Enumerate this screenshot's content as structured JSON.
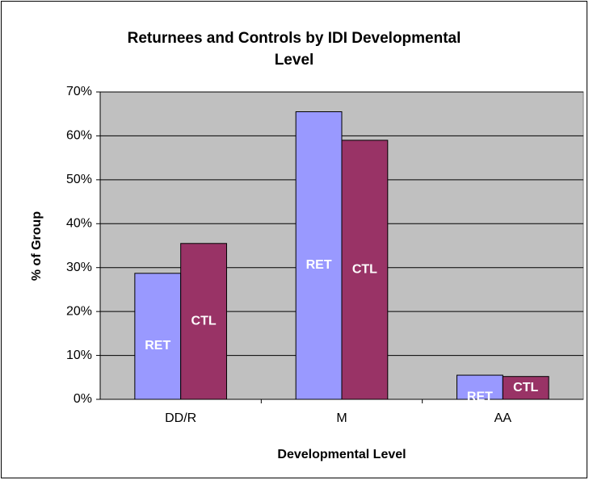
{
  "chart_data": {
    "type": "bar",
    "title": "Returnees and Controls by IDI Developmental Level",
    "x_label": "Developmental Level",
    "y_label": "% of Group",
    "categories": [
      "DD/R",
      "M",
      "AA"
    ],
    "series": [
      {
        "name": "RET",
        "color": "#9999ff",
        "values": [
          28.7,
          65.5,
          5.5
        ]
      },
      {
        "name": "CTL",
        "color": "#993366",
        "values": [
          35.5,
          59,
          5.2
        ]
      }
    ],
    "ylim": [
      0,
      70
    ],
    "yticks": [
      {
        "value": 0,
        "label": "0%"
      },
      {
        "value": 10,
        "label": "10%"
      },
      {
        "value": 20,
        "label": "20%"
      },
      {
        "value": 30,
        "label": "30%"
      },
      {
        "value": 40,
        "label": "40%"
      },
      {
        "value": 50,
        "label": "50%"
      },
      {
        "value": 60,
        "label": "60%"
      },
      {
        "value": 70,
        "label": "70%"
      }
    ],
    "grid": true
  }
}
